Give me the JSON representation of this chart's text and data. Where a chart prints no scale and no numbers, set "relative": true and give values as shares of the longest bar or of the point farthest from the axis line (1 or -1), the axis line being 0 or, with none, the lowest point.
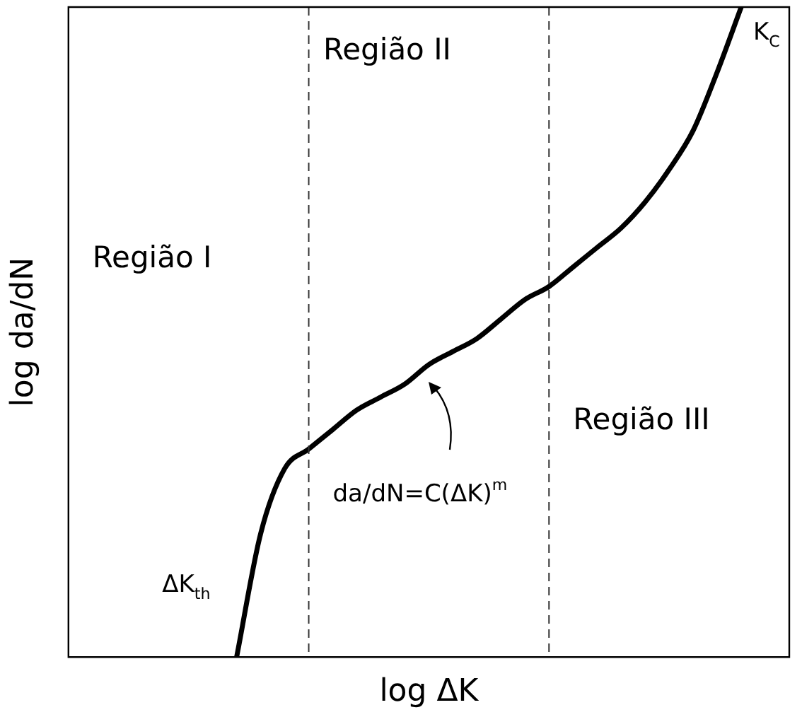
{
  "chart_data": {
    "type": "line",
    "relative": true,
    "xlabel": "log ΔK",
    "ylabel": "log da/dN",
    "categories": [
      null,
      null,
      null,
      null,
      null,
      null,
      null,
      null,
      null,
      null,
      null,
      null,
      null,
      null,
      null,
      null,
      null,
      null,
      null,
      null,
      null,
      null,
      null,
      null,
      null,
      null,
      null,
      null,
      null,
      null,
      null
    ],
    "series": [
      {
        "color": "#000000",
        "values": [
          null,
          null,
          null,
          null,
          null,
          null,
          null,
          0,
          0.19,
          0.29,
          0.32,
          0.35,
          0.38,
          0.4,
          0.42,
          0.45,
          0.47,
          0.49,
          0.52,
          0.55,
          0.57,
          0.6,
          0.63,
          0.66,
          0.7,
          0.75,
          0.81,
          0.9,
          1.0,
          null,
          null
        ]
      }
    ],
    "annotations": [
      "Região I",
      "Região II",
      "Região III",
      "ΔK$_{th}$",
      "K$_{C}$",
      "da/dN=C(ΔK)$^{m}$"
    ],
    "grid": false,
    "legend": false,
    "marker": "none",
    "line_style": "solid"
  }
}
